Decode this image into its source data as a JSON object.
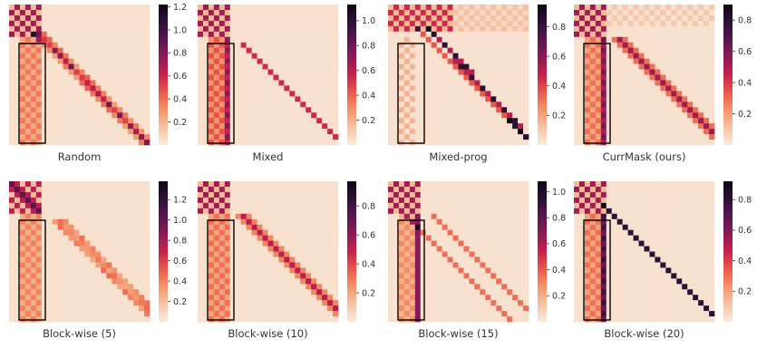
{
  "figure": {
    "colormap": {
      "name": "rocket_r",
      "stops": [
        "#faebdd",
        "#f6c3a5",
        "#f3956a",
        "#ea5a4a",
        "#c7204b",
        "#8c1a55",
        "#5a164f",
        "#2c1135",
        "#0f0617"
      ]
    }
  },
  "chart_data": [
    {
      "type": "heatmap",
      "caption": "Random",
      "pattern": "random",
      "colorbar": {
        "min": 0.0,
        "max": 1.22,
        "ticks": [
          0.2,
          0.4,
          0.6,
          0.8,
          1.0,
          1.2
        ],
        "tick_labels": [
          "0.2",
          "0.4",
          "0.6",
          "0.8",
          "1.0",
          "1.2"
        ]
      }
    },
    {
      "type": "heatmap",
      "caption": "Mixed",
      "pattern": "mixed",
      "colorbar": {
        "min": 0.0,
        "max": 1.13,
        "ticks": [
          0.2,
          0.4,
          0.6,
          0.8,
          1.0
        ],
        "tick_labels": [
          "0.2",
          "0.4",
          "0.6",
          "0.8",
          "1.0"
        ]
      }
    },
    {
      "type": "heatmap",
      "caption": "Mixed-prog",
      "pattern": "mixedprog",
      "colorbar": {
        "min": 0.0,
        "max": 0.95,
        "ticks": [
          0.2,
          0.4,
          0.6,
          0.8
        ],
        "tick_labels": [
          "0.2",
          "0.4",
          "0.6",
          "0.8"
        ]
      }
    },
    {
      "type": "heatmap",
      "caption": "CurrMask (ours)",
      "pattern": "currmask",
      "colorbar": {
        "min": 0.0,
        "max": 0.9,
        "ticks": [
          0.2,
          0.4,
          0.6,
          0.8
        ],
        "tick_labels": [
          "0.2",
          "0.4",
          "0.6",
          "0.8"
        ]
      }
    },
    {
      "type": "heatmap",
      "caption": "Block-wise (5)",
      "pattern": "block5",
      "colorbar": {
        "min": 0.0,
        "max": 1.38,
        "ticks": [
          0.2,
          0.4,
          0.6,
          0.8,
          1.0,
          1.2
        ],
        "tick_labels": [
          "0.2",
          "0.4",
          "0.6",
          "0.8",
          "1.0",
          "1.2"
        ]
      }
    },
    {
      "type": "heatmap",
      "caption": "Block-wise (10)",
      "pattern": "block10",
      "colorbar": {
        "min": 0.0,
        "max": 0.97,
        "ticks": [
          0.2,
          0.4,
          0.6,
          0.8
        ],
        "tick_labels": [
          "0.2",
          "0.4",
          "0.6",
          "0.8"
        ]
      }
    },
    {
      "type": "heatmap",
      "caption": "Block-wise (15)",
      "pattern": "block15",
      "colorbar": {
        "min": 0.0,
        "max": 1.08,
        "ticks": [
          0.2,
          0.4,
          0.6,
          0.8,
          1.0
        ],
        "tick_labels": [
          "0.2",
          "0.4",
          "0.6",
          "0.8",
          "1.0"
        ]
      }
    },
    {
      "type": "heatmap",
      "caption": "Block-wise (20)",
      "pattern": "block20",
      "colorbar": {
        "min": 0.0,
        "max": 0.92,
        "ticks": [
          0.2,
          0.4,
          0.6,
          0.8
        ],
        "tick_labels": [
          "0.2",
          "0.4",
          "0.6",
          "0.8"
        ]
      }
    }
  ]
}
